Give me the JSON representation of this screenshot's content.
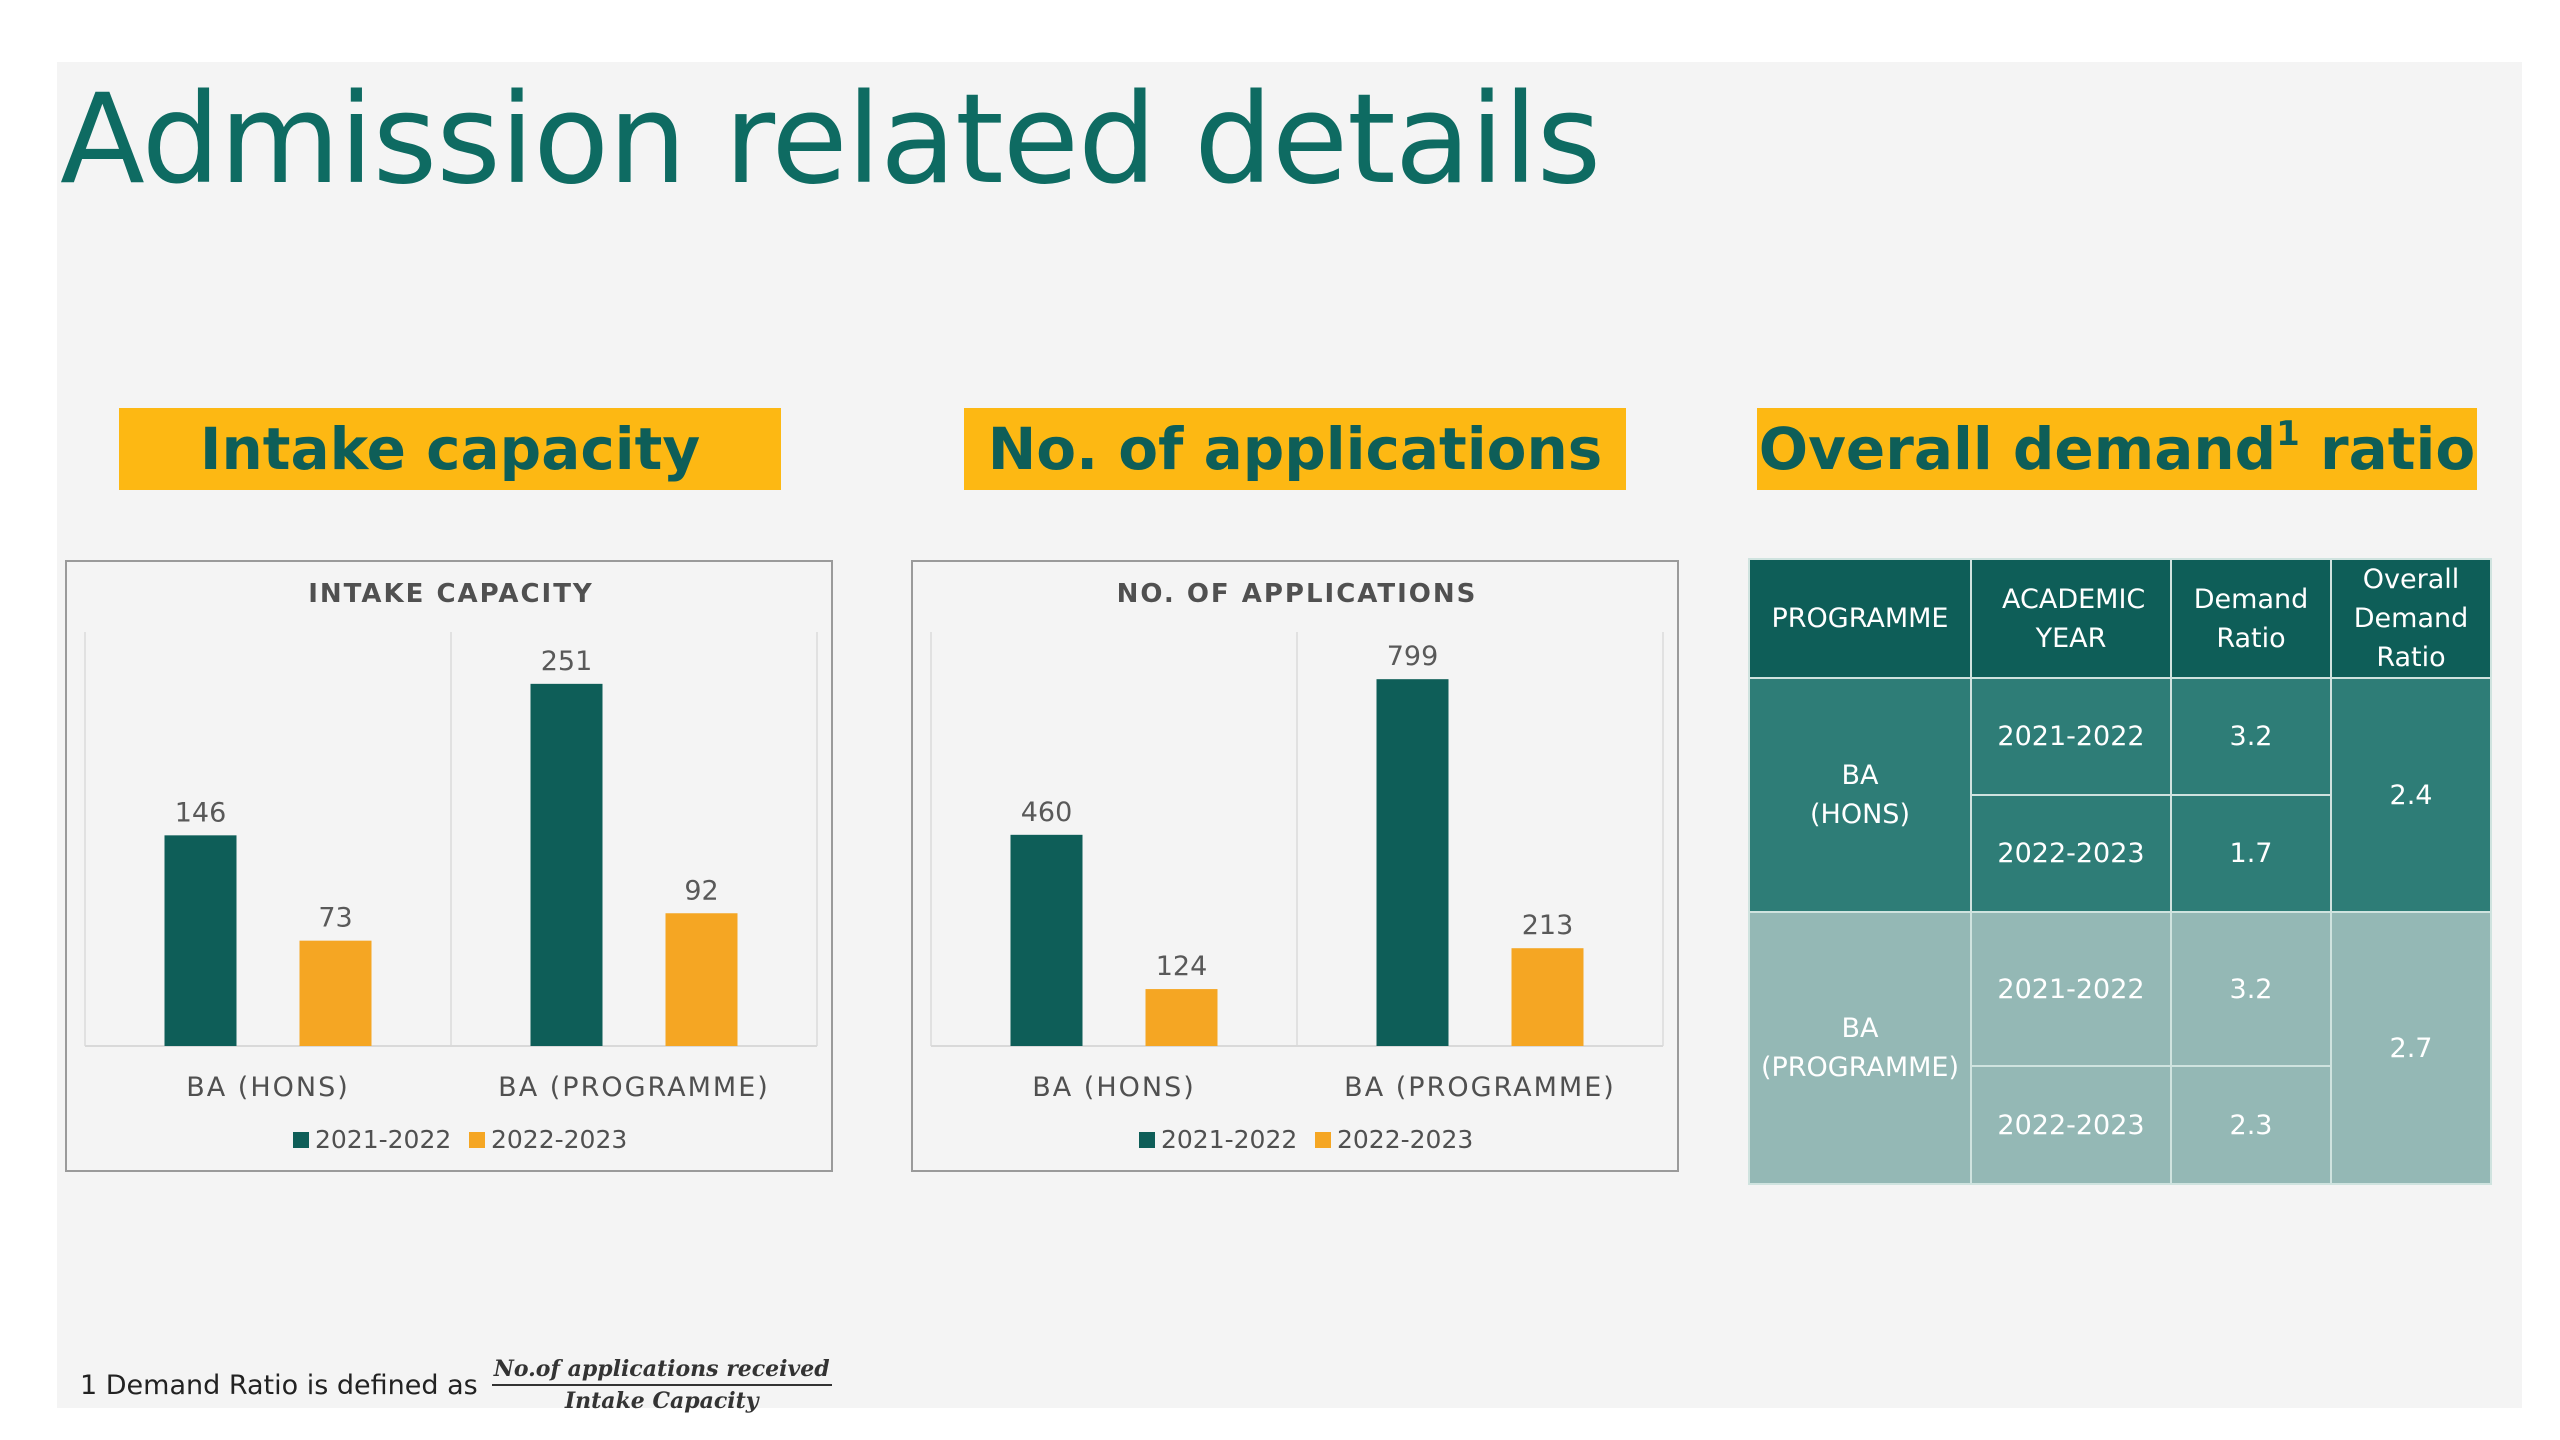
{
  "page": {
    "title": "Admission related details",
    "footnote": {
      "text": "1 Demand Ratio is defined as",
      "numerator": "No.of applications received",
      "denominator": "Intake Capacity"
    }
  },
  "banners": {
    "intake": "Intake capacity",
    "applications": "No. of applications",
    "demand_main": "Overall demand",
    "demand_sup": "1",
    "demand_tail": " ratio"
  },
  "colors": {
    "series1": "#0e5e58",
    "series2": "#f5a623",
    "banner": "#fdb813",
    "title": "#0e6b62"
  },
  "chart_data": [
    {
      "type": "bar",
      "title": "INTAKE CAPACITY",
      "categories": [
        "BA (HONS)",
        "BA (PROGRAMME)"
      ],
      "series": [
        {
          "name": "2021-2022",
          "values": [
            146,
            251
          ]
        },
        {
          "name": "2022-2023",
          "values": [
            73,
            92
          ]
        }
      ],
      "ylim": [
        0,
        280
      ],
      "grid": false,
      "legend": "bottom"
    },
    {
      "type": "bar",
      "title": "NO. OF APPLICATIONS",
      "categories": [
        "BA (HONS)",
        "BA (PROGRAMME)"
      ],
      "series": [
        {
          "name": "2021-2022",
          "values": [
            460,
            799
          ]
        },
        {
          "name": "2022-2023",
          "values": [
            124,
            213
          ]
        }
      ],
      "ylim": [
        0,
        880
      ],
      "grid": false,
      "legend": "bottom"
    }
  ],
  "table": {
    "headers": [
      "PROGRAMME",
      "ACADEMIC YEAR",
      "Demand Ratio",
      "Overall Demand Ratio"
    ],
    "groups": [
      {
        "programme": "BA (HONS)",
        "overall": "2.4",
        "rows": [
          {
            "year": "2021-2022",
            "ratio": "3.2"
          },
          {
            "year": "2022-2023",
            "ratio": "1.7"
          }
        ]
      },
      {
        "programme": "BA (PROGRAMME)",
        "overall": "2.7",
        "rows": [
          {
            "year": "2021-2022",
            "ratio": "3.2"
          },
          {
            "year": "2022-2023",
            "ratio": "2.3"
          }
        ]
      }
    ]
  }
}
